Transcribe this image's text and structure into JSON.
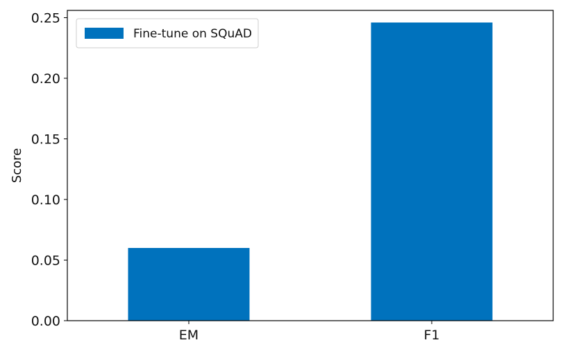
{
  "chart_data": {
    "type": "bar",
    "categories": [
      "EM",
      "F1"
    ],
    "series": [
      {
        "name": "Fine-tune on SQuAD",
        "values": [
          0.06,
          0.246
        ],
        "color": "#0072bd"
      }
    ],
    "xlabel": "",
    "ylabel": "Score",
    "ylim": [
      0,
      0.256
    ],
    "yticks": [
      "0.00",
      "0.05",
      "0.10",
      "0.15",
      "0.20",
      "0.25"
    ],
    "grid": false,
    "legend_position": "top-left"
  }
}
